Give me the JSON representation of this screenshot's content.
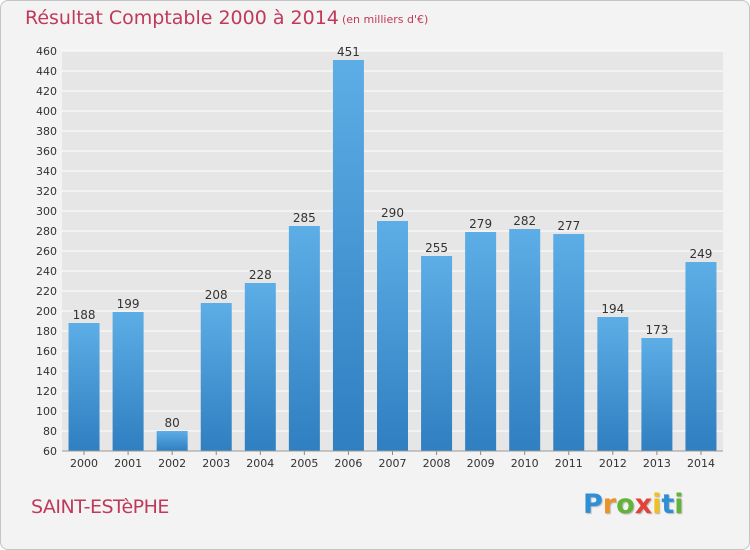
{
  "header": {
    "title": "Résultat Comptable 2000 à 2014",
    "unit": "(en milliers d'€)"
  },
  "footer": {
    "commune": "SAINT-ESTèPHE",
    "logo_text": "Proxiti",
    "logo_colors": [
      "#2f8fd6",
      "#e8942a",
      "#62b33a",
      "#e3413a",
      "#f0c020",
      "#2f8fd6",
      "#62b33a"
    ]
  },
  "colors": {
    "bar_top": "#5dade6",
    "bar_bottom": "#2f7fc1",
    "grid": "#ffffff",
    "plot_bg": "#e6e6e6",
    "text": "#333333",
    "title": "#c0395a"
  },
  "chart_data": {
    "type": "bar",
    "title": "Résultat Comptable 2000 à 2014",
    "xlabel": "",
    "ylabel": "",
    "categories": [
      "2000",
      "2001",
      "2002",
      "2003",
      "2004",
      "2005",
      "2006",
      "2007",
      "2008",
      "2009",
      "2010",
      "2011",
      "2012",
      "2013",
      "2014"
    ],
    "values": [
      188,
      199,
      80,
      208,
      228,
      285,
      451,
      290,
      255,
      279,
      282,
      277,
      194,
      173,
      249
    ],
    "ylim": [
      60,
      460
    ],
    "yticks": [
      60,
      80,
      100,
      120,
      140,
      160,
      180,
      200,
      220,
      240,
      260,
      280,
      300,
      320,
      340,
      360,
      380,
      400,
      420,
      440,
      460
    ],
    "grid": true,
    "data_labels": true
  }
}
